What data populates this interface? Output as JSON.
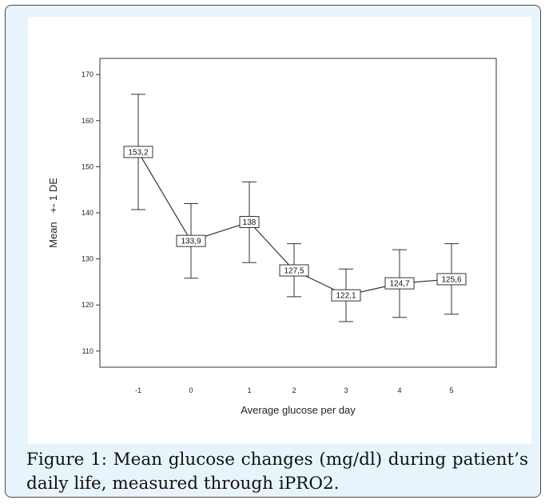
{
  "chart_data": {
    "type": "line",
    "xlabel": "Average glucose per day",
    "ylabel": "Mean   +- 1 DE",
    "x_tick_labels": [
      "-1",
      "0",
      "1",
      "2",
      "3",
      "4",
      "5"
    ],
    "y_ticks": [
      110,
      120,
      130,
      140,
      150,
      160,
      170
    ],
    "ylim": [
      106.5,
      173.5
    ],
    "error_bars": "±1 DE",
    "points": [
      {
        "x": "-1",
        "mean": 153.2,
        "low": 140.7,
        "high": 165.7,
        "label": "153,2"
      },
      {
        "x": "0",
        "mean": 133.9,
        "low": 125.8,
        "high": 142.0,
        "label": "133,9"
      },
      {
        "x": "1",
        "mean": 138.0,
        "low": 129.2,
        "high": 146.7,
        "label": "138"
      },
      {
        "x": "2",
        "mean": 127.5,
        "low": 121.8,
        "high": 133.3,
        "label": "127,5"
      },
      {
        "x": "3",
        "mean": 122.1,
        "low": 116.4,
        "high": 127.8,
        "label": "122,1"
      },
      {
        "x": "4",
        "mean": 124.7,
        "low": 117.3,
        "high": 132.0,
        "label": "124,7"
      },
      {
        "x": "5",
        "mean": 125.6,
        "low": 118.0,
        "high": 133.3,
        "label": "125,6"
      }
    ],
    "grid": false,
    "colors": {
      "line": "#333333",
      "axis": "#333333",
      "label_box": "#ffffff"
    }
  },
  "caption": "Figure 1: Mean glucose changes (mg/dl) during patient’s daily life, measured through iPRO2."
}
